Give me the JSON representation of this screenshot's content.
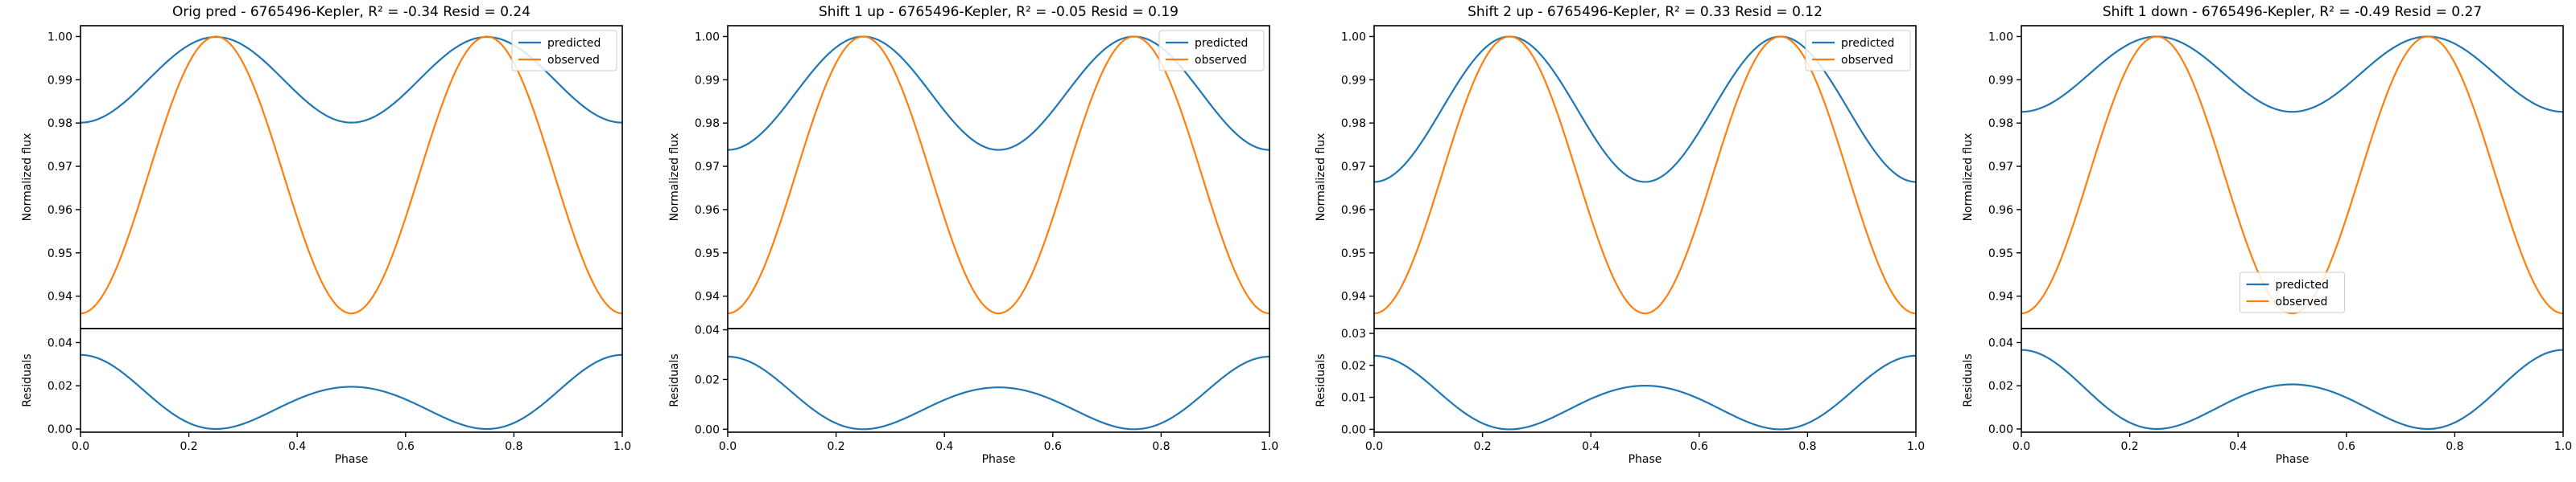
{
  "chart_data": [
    {
      "type": "line",
      "title": "Orig pred - 6765496-Kepler, R² = -0.34 Resid = 0.24",
      "xlabel": "Phase",
      "xlim": [
        0,
        1
      ],
      "xticks": [
        "0.0",
        "0.2",
        "0.4",
        "0.6",
        "0.8",
        "1.0"
      ],
      "top": {
        "ylabel": "Normalized flux",
        "ylim": [
          0.9325,
          1.0025
        ],
        "yticks": [
          "0.94",
          "0.95",
          "0.96",
          "0.97",
          "0.98",
          "0.99",
          "1.00"
        ],
        "legend_position": "top-right",
        "series": [
          {
            "name": "predicted",
            "color": "#1f77b4",
            "model": {
              "type": "cos4",
              "mean": 0.99,
              "amplitude": 0.0099
            }
          },
          {
            "name": "observed",
            "color": "#ff7f0e",
            "model": {
              "type": "cos4",
              "mean": 0.968,
              "amplitude": 0.032
            }
          }
        ]
      },
      "bottom": {
        "ylabel": "Residuals",
        "ylim": [
          -0.0015,
          0.0465
        ],
        "yticks": [
          "0.00",
          "0.02",
          "0.04"
        ],
        "series": [
          {
            "name": "residual",
            "color": "#1f77b4",
            "model": {
              "type": "cos4sq",
              "a": 0.022,
              "b": 0.0123
            }
          }
        ]
      }
    },
    {
      "type": "line",
      "title": "Shift 1 up - 6765496-Kepler, R² = -0.05 Resid = 0.19",
      "xlabel": "Phase",
      "xlim": [
        0,
        1
      ],
      "xticks": [
        "0.0",
        "0.2",
        "0.4",
        "0.6",
        "0.8",
        "1.0"
      ],
      "top": {
        "ylabel": "Normalized flux",
        "ylim": [
          0.9325,
          1.0025
        ],
        "yticks": [
          "0.94",
          "0.95",
          "0.96",
          "0.97",
          "0.98",
          "0.99",
          "1.00"
        ],
        "legend_position": "top-right",
        "series": [
          {
            "name": "predicted",
            "color": "#1f77b4",
            "model": {
              "type": "cos4",
              "mean": 0.9869,
              "amplitude": 0.0131
            }
          },
          {
            "name": "observed",
            "color": "#ff7f0e",
            "model": {
              "type": "cos4",
              "mean": 0.968,
              "amplitude": 0.032
            }
          }
        ]
      },
      "bottom": {
        "ylabel": "Residuals",
        "ylim": [
          -0.0012,
          0.0405
        ],
        "yticks": [
          "0.00",
          "0.02",
          "0.04"
        ],
        "series": [
          {
            "name": "residual",
            "color": "#1f77b4",
            "model": {
              "type": "cos4sq",
              "a": 0.0189,
              "b": 0.0103
            }
          }
        ]
      }
    },
    {
      "type": "line",
      "title": "Shift 2 up - 6765496-Kepler, R² = 0.33 Resid = 0.12",
      "xlabel": "Phase",
      "xlim": [
        0,
        1
      ],
      "xticks": [
        "0.0",
        "0.2",
        "0.4",
        "0.6",
        "0.8",
        "1.0"
      ],
      "top": {
        "ylabel": "Normalized flux",
        "ylim": [
          0.9325,
          1.0025
        ],
        "yticks": [
          "0.94",
          "0.95",
          "0.96",
          "0.97",
          "0.98",
          "0.99",
          "1.00"
        ],
        "legend_position": "top-right",
        "series": [
          {
            "name": "predicted",
            "color": "#1f77b4",
            "model": {
              "type": "cos4",
              "mean": 0.9832,
              "amplitude": 0.0168
            }
          },
          {
            "name": "observed",
            "color": "#ff7f0e",
            "model": {
              "type": "cos4",
              "mean": 0.968,
              "amplitude": 0.032
            }
          }
        ]
      },
      "bottom": {
        "ylabel": "Residuals",
        "ylim": [
          -0.0009,
          0.0315
        ],
        "yticks": [
          "0.00",
          "0.01",
          "0.02",
          "0.03"
        ],
        "series": [
          {
            "name": "residual",
            "color": "#1f77b4",
            "model": {
              "type": "cos4sq",
              "a": 0.0152,
              "b": 0.0078
            }
          }
        ]
      }
    },
    {
      "type": "line",
      "title": "Shift 1 down - 6765496-Kepler, R² = -0.49 Resid = 0.27",
      "xlabel": "Phase",
      "xlim": [
        0,
        1
      ],
      "xticks": [
        "0.0",
        "0.2",
        "0.4",
        "0.6",
        "0.8",
        "1.0"
      ],
      "top": {
        "ylabel": "Normalized flux",
        "ylim": [
          0.9325,
          1.0025
        ],
        "yticks": [
          "0.94",
          "0.95",
          "0.96",
          "0.97",
          "0.98",
          "0.99",
          "1.00"
        ],
        "legend_position": "lower-center",
        "series": [
          {
            "name": "predicted",
            "color": "#1f77b4",
            "model": {
              "type": "cos4",
              "mean": 0.9913,
              "amplitude": 0.0087
            }
          },
          {
            "name": "observed",
            "color": "#ff7f0e",
            "model": {
              "type": "cos4",
              "mean": 0.968,
              "amplitude": 0.032
            }
          }
        ]
      },
      "bottom": {
        "ylabel": "Residuals",
        "ylim": [
          -0.0015,
          0.0465
        ],
        "yticks": [
          "0.00",
          "0.02",
          "0.04"
        ],
        "series": [
          {
            "name": "residual",
            "color": "#1f77b4",
            "model": {
              "type": "cos4sq",
              "a": 0.0233,
              "b": 0.0133
            }
          }
        ]
      }
    }
  ]
}
